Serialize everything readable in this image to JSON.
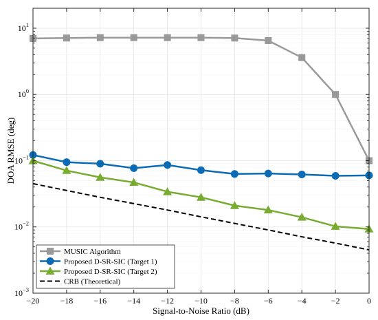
{
  "chart_data": {
    "type": "line",
    "xlabel": "Signal-to-Noise Ratio (dB)",
    "ylabel": "DOA RMSE (deg)",
    "x": [
      -20,
      -18,
      -16,
      -14,
      -12,
      -10,
      -8,
      -6,
      -4,
      -2,
      0
    ],
    "xticks": [
      -20,
      -18,
      -16,
      -14,
      -12,
      -10,
      -8,
      -6,
      -4,
      -2,
      0
    ],
    "xlim": [
      -20,
      0
    ],
    "yscale": "log",
    "ylim": [
      0.001,
      20
    ],
    "yticks": [
      {
        "base": "10",
        "exp": "-3"
      },
      {
        "base": "10",
        "exp": "-2"
      },
      {
        "base": "10",
        "exp": "-1"
      },
      {
        "base": "10",
        "exp": "0"
      },
      {
        "base": "10",
        "exp": "1"
      }
    ],
    "ytick_values": [
      0.001,
      0.01,
      0.1,
      1,
      10
    ],
    "grid": true,
    "legend_position": "bottom-left",
    "series": [
      {
        "name": "MUSIC Algorithm",
        "color": "#999999",
        "marker": "square",
        "dash": "solid",
        "values": [
          7.0,
          7.1,
          7.2,
          7.2,
          7.2,
          7.2,
          7.1,
          6.5,
          3.6,
          1.0,
          0.1
        ]
      },
      {
        "name": "Proposed D-SR-SIC (Target 1)",
        "color": "#0b6bb5",
        "marker": "circle",
        "dash": "solid",
        "values": [
          0.122,
          0.095,
          0.09,
          0.077,
          0.086,
          0.072,
          0.063,
          0.064,
          0.062,
          0.059,
          0.06
        ]
      },
      {
        "name": "Proposed D-SR-SIC (Target 2)",
        "color": "#77ac30",
        "marker": "triangle",
        "dash": "solid",
        "values": [
          0.1,
          0.071,
          0.056,
          0.047,
          0.034,
          0.028,
          0.021,
          0.018,
          0.014,
          0.0102,
          0.0093
        ]
      },
      {
        "name": "CRB (Theoretical)",
        "color": "#000000",
        "marker": "none",
        "dash": "dashed",
        "values": [
          0.045,
          0.0355,
          0.028,
          0.0225,
          0.018,
          0.0142,
          0.0113,
          0.009,
          0.0071,
          0.0057,
          0.0045
        ]
      }
    ]
  }
}
